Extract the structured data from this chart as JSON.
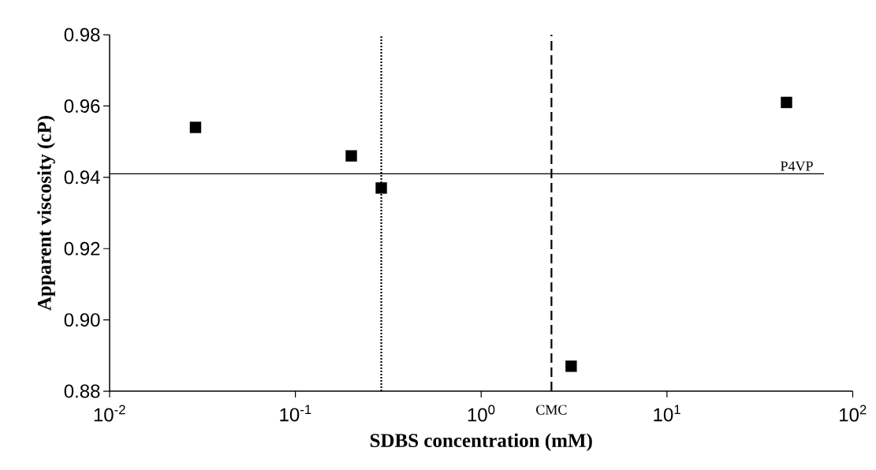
{
  "chart_data": {
    "type": "scatter",
    "xlabel": "SDBS concentration (mM)",
    "ylabel": "Apparent viscosity (cP)",
    "log": "x",
    "marker": "square",
    "xlim": [
      0.01,
      100
    ],
    "ylim": [
      0.88,
      0.98
    ],
    "xticks": [
      {
        "value": 0.01,
        "label": "10$^{-2}$"
      },
      {
        "value": 0.1,
        "label": "10$^{-1}$"
      },
      {
        "value": 1,
        "label": "10$^{0}$"
      },
      {
        "value": 10,
        "label": "10$^{1}$"
      },
      {
        "value": 100,
        "label": "10$^{2}$"
      }
    ],
    "yticks": [
      0.88,
      {
        "value": 0.9,
        "label": "0.90"
      },
      0.92,
      0.94,
      0.96,
      0.98
    ],
    "x": [
      0.029,
      0.2,
      0.29,
      3.05,
      44
    ],
    "series": [
      {
        "color": "#000000",
        "values": [
          0.954,
          0.946,
          0.937,
          0.887,
          0.961
        ]
      }
    ],
    "ref_lines": [
      {
        "axis": "x",
        "value": 0.29,
        "line_style": "dotted"
      },
      {
        "axis": "x",
        "value": 2.39,
        "label": "CMC",
        "line_style": "dashed"
      },
      {
        "axis": "y",
        "value": 0.941,
        "label": "P4VP",
        "line_style": "solid"
      }
    ]
  }
}
